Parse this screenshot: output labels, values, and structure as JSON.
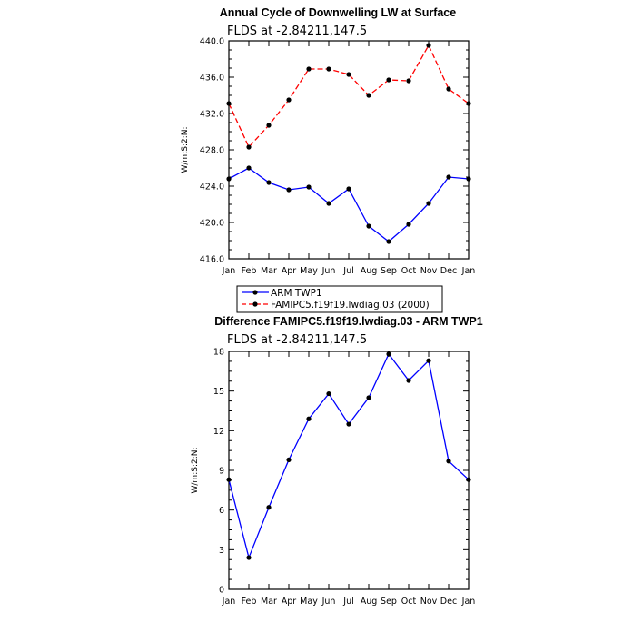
{
  "chart_data": [
    {
      "type": "line",
      "title": "Annual Cycle of Downwelling LW at Surface",
      "subtitle": "FLDS at -2.84211,147.5",
      "ylabel": "W/m:S:2:N:",
      "xlabel": "",
      "categories": [
        "Jan",
        "Feb",
        "Mar",
        "Apr",
        "May",
        "Jun",
        "Jul",
        "Aug",
        "Sep",
        "Oct",
        "Nov",
        "Dec",
        "Jan"
      ],
      "ylim": [
        416.0,
        440.0
      ],
      "yticks": [
        "416.0",
        "420.0",
        "424.0",
        "428.0",
        "432.0",
        "436.0",
        "440.0"
      ],
      "series": [
        {
          "name": "ARM TWP1",
          "color": "#0000ff",
          "dash": "solid",
          "values": [
            424.8,
            426.0,
            424.4,
            423.6,
            423.9,
            422.1,
            423.7,
            419.6,
            417.9,
            419.8,
            422.1,
            425.0,
            424.8
          ]
        },
        {
          "name": "FAMIPC5.f19f19.lwdiag.03 (2000)",
          "color": "#ff0000",
          "dash": "dashed",
          "values": [
            433.1,
            428.3,
            430.7,
            433.5,
            436.9,
            436.9,
            436.3,
            434.0,
            435.7,
            435.6,
            439.5,
            434.7,
            433.1
          ]
        }
      ],
      "legend": "bottom"
    },
    {
      "type": "line",
      "title": "Difference FAMIPC5.f19f19.lwdiag.03 - ARM TWP1",
      "subtitle": "FLDS at -2.84211,147.5",
      "ylabel": "W/m:S:2:N:",
      "xlabel": "",
      "categories": [
        "Jan",
        "Feb",
        "Mar",
        "Apr",
        "May",
        "Jun",
        "Jul",
        "Aug",
        "Sep",
        "Oct",
        "Nov",
        "Dec",
        "Jan"
      ],
      "ylim": [
        0,
        18
      ],
      "yticks": [
        "0",
        "3",
        "6",
        "9",
        "12",
        "15",
        "18"
      ],
      "series": [
        {
          "name": "Difference",
          "color": "#0000ff",
          "dash": "solid",
          "values": [
            8.3,
            2.4,
            6.2,
            9.8,
            12.9,
            14.8,
            12.5,
            14.5,
            17.8,
            15.8,
            17.3,
            9.7,
            8.3
          ]
        }
      ]
    }
  ]
}
